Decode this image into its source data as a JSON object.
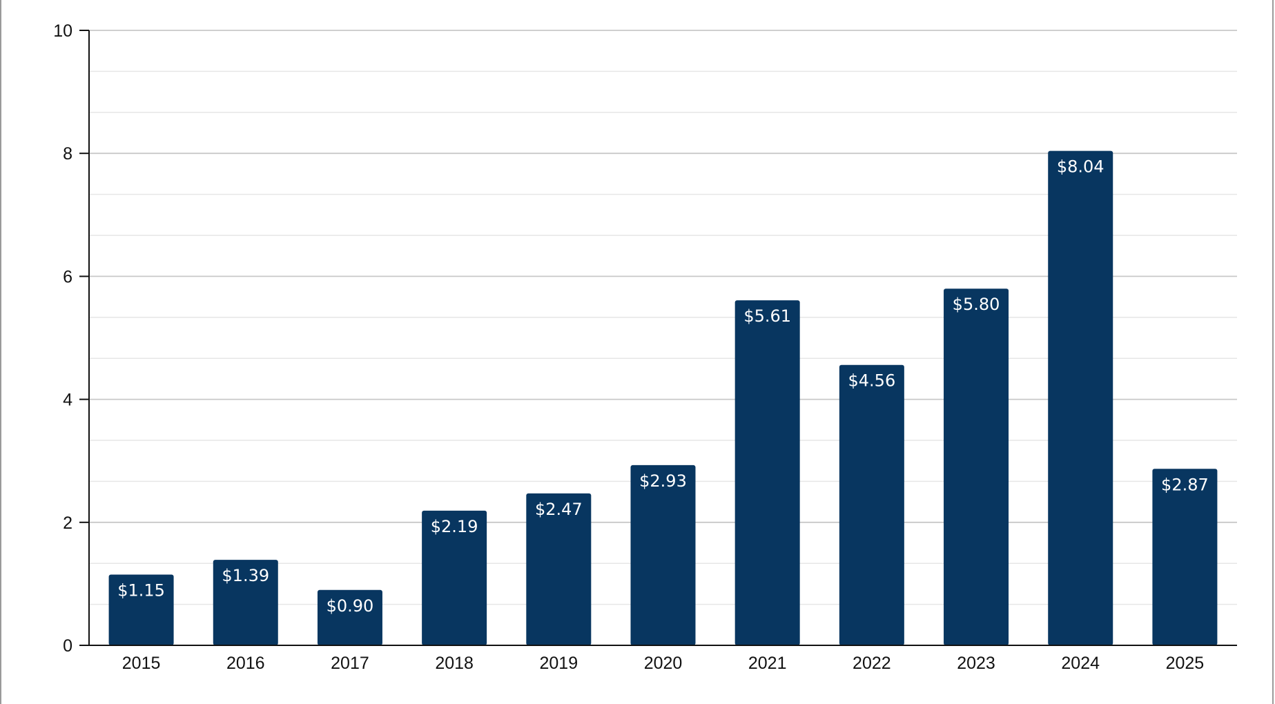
{
  "chart_data": {
    "type": "bar",
    "title": "",
    "xlabel": "",
    "ylabel": "",
    "categories": [
      "2015",
      "2016",
      "2017",
      "2018",
      "2019",
      "2020",
      "2021",
      "2022",
      "2023",
      "2024",
      "2025"
    ],
    "values": [
      1.15,
      1.39,
      0.9,
      2.19,
      2.47,
      2.93,
      5.61,
      4.56,
      5.8,
      8.04,
      2.87
    ],
    "data_labels": [
      "$1.15",
      "$1.39",
      "$0.90",
      "$2.19",
      "$2.47",
      "$2.93",
      "$5.61",
      "$4.56",
      "$5.80",
      "$8.04",
      "$2.87"
    ],
    "ylim": [
      0,
      10
    ],
    "yticks": [
      "0",
      "2",
      "4",
      "6",
      "8",
      "10"
    ],
    "ytick_values": [
      0,
      2,
      4,
      6,
      8,
      10
    ],
    "minor_gridlines": true,
    "grid": true,
    "legend": "none",
    "colors": {
      "bar": "#083660",
      "bar_label": "#ffffff",
      "major_grid": "#c8c8c8",
      "minor_grid": "#e6e6e6",
      "axis": "#111111"
    }
  }
}
